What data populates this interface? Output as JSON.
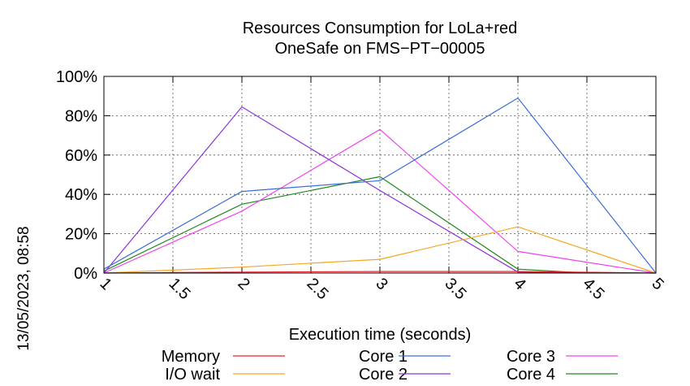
{
  "chart_data": {
    "type": "line",
    "title": [
      "Resources Consumption for LoLa+red",
      "OneSafe on FMS−PT−00005"
    ],
    "timestamp": "13/05/2023, 08:58",
    "xlabel": "Execution time (seconds)",
    "ylabel": "",
    "xlim": [
      1,
      5
    ],
    "ylim": [
      0,
      100
    ],
    "x_ticks": [
      1,
      1.5,
      2,
      2.5,
      3,
      3.5,
      4,
      4.5,
      5
    ],
    "x_tick_labels": [
      "1",
      "1.5",
      "2",
      "2.5",
      "3",
      "3.5",
      "4",
      "4.5",
      "5"
    ],
    "y_ticks": [
      0,
      20,
      40,
      60,
      80,
      100
    ],
    "y_tick_labels": [
      "0%",
      "20%",
      "40%",
      "60%",
      "80%",
      "100%"
    ],
    "grid": true,
    "legend_position": "bottom",
    "series": [
      {
        "name": "Memory",
        "color": "#e8252c",
        "x": [
          1,
          2,
          3,
          4,
          5
        ],
        "values": [
          0,
          0.5,
          0.8,
          0.8,
          0
        ]
      },
      {
        "name": "I/O wait",
        "color": "#f5a623",
        "x": [
          1,
          2,
          3,
          4,
          5
        ],
        "values": [
          0,
          3,
          7,
          23.5,
          0
        ]
      },
      {
        "name": "Core 1",
        "color": "#3a6fd8",
        "x": [
          1,
          2,
          3,
          4,
          5
        ],
        "values": [
          2,
          41.5,
          47,
          89,
          0
        ]
      },
      {
        "name": "Core 2",
        "color": "#8e33d8",
        "x": [
          1,
          2,
          3,
          4,
          5
        ],
        "values": [
          0,
          84.5,
          42,
          0.5,
          0
        ]
      },
      {
        "name": "Core 3",
        "color": "#ee44ee",
        "x": [
          1,
          2,
          3,
          4,
          5
        ],
        "values": [
          0,
          31.5,
          73,
          11,
          0
        ]
      },
      {
        "name": "Core 4",
        "color": "#1c8a1c",
        "x": [
          1,
          2,
          3,
          4,
          4.5
        ],
        "values": [
          1,
          35,
          49,
          2,
          0
        ]
      }
    ]
  }
}
